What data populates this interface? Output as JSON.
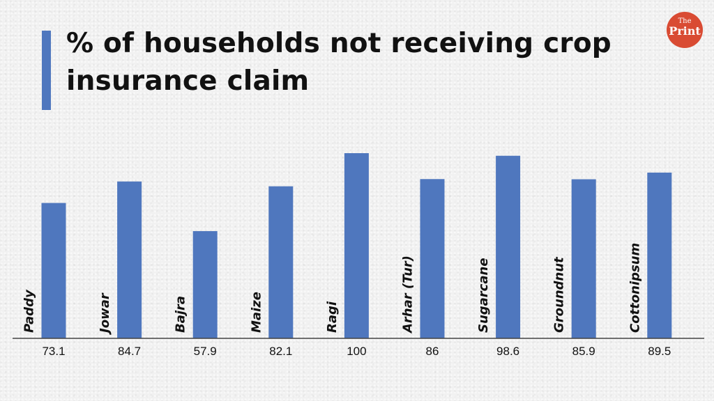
{
  "title": "% of households not receiving crop insurance claim",
  "logo": {
    "the": "The",
    "print": "Print"
  },
  "colors": {
    "bar": "#4f77be",
    "accent": "#4f77be",
    "logo_bg": "#d94b33",
    "axis": "#444444"
  },
  "chart_data": {
    "type": "bar",
    "title": "% of households not receiving crop insurance claim",
    "categories": [
      "Paddy",
      "Jowar",
      "Bajra",
      "Maize",
      "Ragi",
      "Arhar (Tur)",
      "Sugarcane",
      "Groundnut",
      "Cottonipsum"
    ],
    "values": [
      73.1,
      84.7,
      57.9,
      82.1,
      100,
      86,
      98.6,
      85.9,
      89.5
    ],
    "value_labels": [
      "73.1",
      "84.7",
      "57.9",
      "82.1",
      "100",
      "86",
      "98.6",
      "85.9",
      "89.5"
    ],
    "xlabel": "",
    "ylabel": "",
    "ylim": [
      0,
      100
    ],
    "grid": false,
    "legend": "none"
  }
}
